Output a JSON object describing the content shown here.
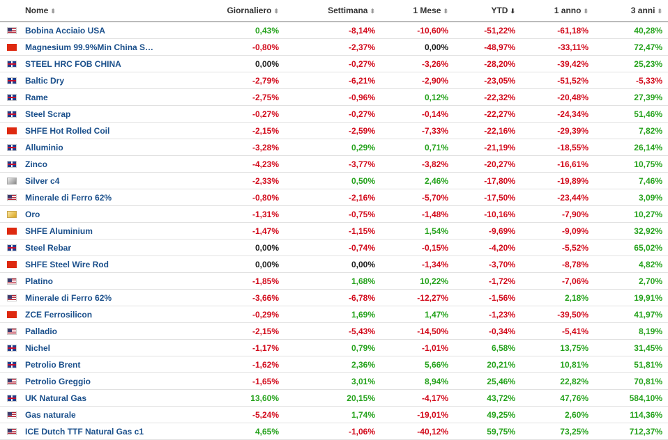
{
  "headers": [
    {
      "key": "name",
      "label": "Nome",
      "sort": "⬍"
    },
    {
      "key": "daily",
      "label": "Giornaliero",
      "sort": "⬍"
    },
    {
      "key": "weekly",
      "label": "Settimana",
      "sort": "⬍"
    },
    {
      "key": "month",
      "label": "1 Mese",
      "sort": "⬍"
    },
    {
      "key": "ytd",
      "label": "YTD",
      "sort": "⬇"
    },
    {
      "key": "year",
      "label": "1 anno",
      "sort": "⬍"
    },
    {
      "key": "three",
      "label": "3 anni",
      "sort": "⬍"
    }
  ],
  "rows": [
    {
      "flag": "us",
      "name": "Bobina Acciaio USA",
      "daily": "0,43%",
      "weekly": "-8,14%",
      "month": "-10,60%",
      "ytd": "-51,22%",
      "year": "-61,18%",
      "three": "40,28%"
    },
    {
      "flag": "cn",
      "name": "Magnesium 99.9%Min China S…",
      "daily": "-0,80%",
      "weekly": "-2,37%",
      "month": "0,00%",
      "ytd": "-48,97%",
      "year": "-33,11%",
      "three": "72,47%"
    },
    {
      "flag": "gb",
      "name": "STEEL HRC FOB CHINA",
      "daily": "0,00%",
      "weekly": "-0,27%",
      "month": "-3,26%",
      "ytd": "-28,20%",
      "year": "-39,42%",
      "three": "25,23%"
    },
    {
      "flag": "gb",
      "name": "Baltic Dry",
      "daily": "-2,79%",
      "weekly": "-6,21%",
      "month": "-2,90%",
      "ytd": "-23,05%",
      "year": "-51,52%",
      "three": "-5,33%"
    },
    {
      "flag": "gb",
      "name": "Rame",
      "daily": "-2,75%",
      "weekly": "-0,96%",
      "month": "0,12%",
      "ytd": "-22,32%",
      "year": "-20,48%",
      "three": "27,39%"
    },
    {
      "flag": "gb",
      "name": "Steel Scrap",
      "daily": "-0,27%",
      "weekly": "-0,27%",
      "month": "-0,14%",
      "ytd": "-22,27%",
      "year": "-24,34%",
      "three": "51,46%"
    },
    {
      "flag": "cn",
      "name": "SHFE Hot Rolled Coil",
      "daily": "-2,15%",
      "weekly": "-2,59%",
      "month": "-7,33%",
      "ytd": "-22,16%",
      "year": "-29,39%",
      "three": "7,82%"
    },
    {
      "flag": "gb",
      "name": "Alluminio",
      "daily": "-3,28%",
      "weekly": "0,29%",
      "month": "0,71%",
      "ytd": "-21,19%",
      "year": "-18,55%",
      "three": "26,14%"
    },
    {
      "flag": "gb",
      "name": "Zinco",
      "daily": "-4,23%",
      "weekly": "-3,77%",
      "month": "-3,82%",
      "ytd": "-20,27%",
      "year": "-16,61%",
      "three": "10,75%"
    },
    {
      "flag": "silver",
      "name": "Silver c4",
      "daily": "-2,33%",
      "weekly": "0,50%",
      "month": "2,46%",
      "ytd": "-17,80%",
      "year": "-19,89%",
      "three": "7,46%"
    },
    {
      "flag": "us",
      "name": "Minerale di Ferro 62%",
      "daily": "-0,80%",
      "weekly": "-2,16%",
      "month": "-5,70%",
      "ytd": "-17,50%",
      "year": "-23,44%",
      "three": "3,09%"
    },
    {
      "flag": "gold",
      "name": "Oro",
      "daily": "-1,31%",
      "weekly": "-0,75%",
      "month": "-1,48%",
      "ytd": "-10,16%",
      "year": "-7,90%",
      "three": "10,27%"
    },
    {
      "flag": "cn",
      "name": "SHFE Aluminium",
      "daily": "-1,47%",
      "weekly": "-1,15%",
      "month": "1,54%",
      "ytd": "-9,69%",
      "year": "-9,09%",
      "three": "32,92%"
    },
    {
      "flag": "gb",
      "name": "Steel Rebar",
      "daily": "0,00%",
      "weekly": "-0,74%",
      "month": "-0,15%",
      "ytd": "-4,20%",
      "year": "-5,52%",
      "three": "65,02%"
    },
    {
      "flag": "cn",
      "name": "SHFE Steel Wire Rod",
      "daily": "0,00%",
      "weekly": "0,00%",
      "month": "-1,34%",
      "ytd": "-3,70%",
      "year": "-8,78%",
      "three": "4,82%"
    },
    {
      "flag": "us",
      "name": "Platino",
      "daily": "-1,85%",
      "weekly": "1,68%",
      "month": "10,22%",
      "ytd": "-1,72%",
      "year": "-7,06%",
      "three": "2,70%"
    },
    {
      "flag": "us",
      "name": "Minerale di Ferro 62%",
      "daily": "-3,66%",
      "weekly": "-6,78%",
      "month": "-12,27%",
      "ytd": "-1,56%",
      "year": "2,18%",
      "three": "19,91%"
    },
    {
      "flag": "cn",
      "name": "ZCE Ferrosilicon",
      "daily": "-0,29%",
      "weekly": "1,69%",
      "month": "1,47%",
      "ytd": "-1,23%",
      "year": "-39,50%",
      "three": "41,97%"
    },
    {
      "flag": "us",
      "name": "Palladio",
      "daily": "-2,15%",
      "weekly": "-5,43%",
      "month": "-14,50%",
      "ytd": "-0,34%",
      "year": "-5,41%",
      "three": "8,19%"
    },
    {
      "flag": "gb",
      "name": "Nichel",
      "daily": "-1,17%",
      "weekly": "0,79%",
      "month": "-1,01%",
      "ytd": "6,58%",
      "year": "13,75%",
      "three": "31,45%"
    },
    {
      "flag": "gb",
      "name": "Petrolio Brent",
      "daily": "-1,62%",
      "weekly": "2,36%",
      "month": "5,66%",
      "ytd": "20,21%",
      "year": "10,81%",
      "three": "51,81%"
    },
    {
      "flag": "us",
      "name": "Petrolio Greggio",
      "daily": "-1,65%",
      "weekly": "3,01%",
      "month": "8,94%",
      "ytd": "25,46%",
      "year": "22,82%",
      "three": "70,81%"
    },
    {
      "flag": "gb",
      "name": "UK Natural Gas",
      "daily": "13,60%",
      "weekly": "20,15%",
      "month": "-4,17%",
      "ytd": "43,72%",
      "year": "47,76%",
      "three": "584,10%"
    },
    {
      "flag": "us",
      "name": "Gas naturale",
      "daily": "-5,24%",
      "weekly": "1,74%",
      "month": "-19,01%",
      "ytd": "49,25%",
      "year": "2,60%",
      "three": "114,36%"
    },
    {
      "flag": "us",
      "name": "ICE Dutch TTF Natural Gas c1",
      "daily": "4,65%",
      "weekly": "-1,06%",
      "month": "-40,12%",
      "ytd": "59,75%",
      "year": "73,25%",
      "three": "712,37%"
    }
  ],
  "colors": {
    "positive": "#24a21b",
    "negative": "#d2091a",
    "neutral": "#1a1a1a",
    "link": "#1a4f8b"
  }
}
